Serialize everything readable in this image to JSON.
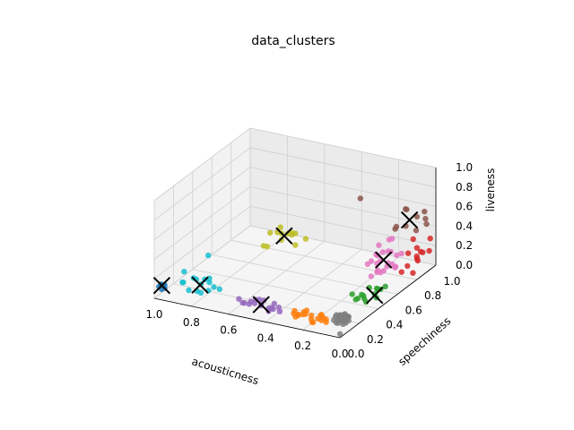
{
  "chart_data": {
    "type": "scatter",
    "subtype": "3d",
    "title": "data_clusters",
    "xlabel": "acousticness",
    "ylabel": "speechiness",
    "zlabel": "liveness",
    "xlim": [
      0,
      1
    ],
    "ylim": [
      0,
      1
    ],
    "zlim": [
      0,
      1
    ],
    "x_ticks": [
      "0.0",
      "0.2",
      "0.4",
      "0.6",
      "0.8",
      "1.0"
    ],
    "y_ticks": [
      "0.0",
      "0.2",
      "0.4",
      "0.6",
      "0.8",
      "1.0"
    ],
    "z_ticks": [
      "0.0",
      "0.2",
      "0.4",
      "0.6",
      "0.8",
      "1.0"
    ],
    "grid": true,
    "series": [
      {
        "color": "#1f77b4",
        "points": [
          [
            0.99,
            0.03,
            0.1
          ],
          [
            0.98,
            0.04,
            0.12
          ],
          [
            0.97,
            0.02,
            0.09
          ],
          [
            0.99,
            0.05,
            0.11
          ],
          [
            0.96,
            0.03,
            0.13
          ],
          [
            0.98,
            0.06,
            0.1
          ],
          [
            0.97,
            0.05,
            0.08
          ]
        ]
      },
      {
        "color": "#ff7f0e",
        "points": [
          [
            0.12,
            0.04,
            0.1
          ],
          [
            0.18,
            0.05,
            0.08
          ],
          [
            0.22,
            0.04,
            0.12
          ],
          [
            0.15,
            0.06,
            0.09
          ],
          [
            0.25,
            0.05,
            0.1
          ],
          [
            0.2,
            0.03,
            0.14
          ],
          [
            0.1,
            0.05,
            0.11
          ],
          [
            0.28,
            0.06,
            0.09
          ],
          [
            0.16,
            0.03,
            0.07
          ],
          [
            0.14,
            0.07,
            0.12
          ],
          [
            0.21,
            0.06,
            0.15
          ],
          [
            0.24,
            0.03,
            0.11
          ],
          [
            0.11,
            0.04,
            0.13
          ],
          [
            0.19,
            0.07,
            0.1
          ],
          [
            0.17,
            0.04,
            0.06
          ],
          [
            0.26,
            0.04,
            0.08
          ],
          [
            0.13,
            0.06,
            0.14
          ],
          [
            0.23,
            0.07,
            0.12
          ],
          [
            0.09,
            0.03,
            0.1
          ],
          [
            0.27,
            0.05,
            0.13
          ]
        ]
      },
      {
        "color": "#2ca02c",
        "points": [
          [
            0.05,
            0.35,
            0.12
          ],
          [
            0.08,
            0.4,
            0.1
          ],
          [
            0.03,
            0.45,
            0.15
          ],
          [
            0.1,
            0.38,
            0.08
          ],
          [
            0.06,
            0.5,
            0.11
          ],
          [
            0.02,
            0.42,
            0.09
          ],
          [
            0.12,
            0.36,
            0.13
          ],
          [
            0.04,
            0.55,
            0.1
          ],
          [
            0.07,
            0.3,
            0.14
          ],
          [
            0.09,
            0.48,
            0.12
          ],
          [
            0.01,
            0.38,
            0.16
          ],
          [
            0.11,
            0.44,
            0.07
          ],
          [
            0.03,
            0.33,
            0.11
          ],
          [
            0.05,
            0.52,
            0.09
          ]
        ]
      },
      {
        "color": "#d62728",
        "points": [
          [
            0.02,
            0.85,
            0.15
          ],
          [
            0.03,
            0.9,
            0.2
          ],
          [
            0.05,
            0.8,
            0.12
          ],
          [
            0.01,
            0.95,
            0.18
          ],
          [
            0.04,
            0.88,
            0.25
          ],
          [
            0.02,
            0.75,
            0.3
          ],
          [
            0.06,
            0.92,
            0.1
          ],
          [
            0.01,
            0.82,
            0.22
          ],
          [
            0.03,
            0.7,
            0.14
          ],
          [
            0.02,
            0.98,
            0.28
          ],
          [
            0.05,
            0.86,
            0.35
          ],
          [
            0.01,
            0.78,
            0.08
          ],
          [
            0.04,
            0.94,
            0.16
          ]
        ]
      },
      {
        "color": "#9467bd",
        "points": [
          [
            0.45,
            0.05,
            0.12
          ],
          [
            0.4,
            0.06,
            0.1
          ],
          [
            0.5,
            0.04,
            0.14
          ],
          [
            0.42,
            0.07,
            0.08
          ],
          [
            0.48,
            0.05,
            0.16
          ],
          [
            0.38,
            0.04,
            0.11
          ],
          [
            0.52,
            0.06,
            0.09
          ],
          [
            0.44,
            0.03,
            0.13
          ],
          [
            0.36,
            0.06,
            0.12
          ],
          [
            0.55,
            0.05,
            0.1
          ],
          [
            0.47,
            0.07,
            0.15
          ],
          [
            0.41,
            0.05,
            0.07
          ],
          [
            0.53,
            0.03,
            0.12
          ],
          [
            0.39,
            0.07,
            0.14
          ],
          [
            0.49,
            0.06,
            0.11
          ],
          [
            0.43,
            0.04,
            0.18
          ],
          [
            0.57,
            0.05,
            0.13
          ],
          [
            0.35,
            0.05,
            0.09
          ]
        ]
      },
      {
        "color": "#8c564b",
        "points": [
          [
            0.05,
            0.9,
            0.55
          ],
          [
            0.08,
            0.85,
            0.65
          ],
          [
            0.03,
            0.95,
            0.5
          ],
          [
            0.1,
            0.88,
            0.45
          ],
          [
            0.06,
            0.8,
            0.7
          ],
          [
            0.02,
            0.92,
            0.6
          ],
          [
            0.2,
            0.6,
            0.9
          ],
          [
            0.12,
            0.82,
            0.48
          ],
          [
            0.04,
            0.98,
            0.42
          ],
          [
            0.09,
            0.75,
            0.52
          ],
          [
            0.07,
            0.93,
            0.38
          ]
        ]
      },
      {
        "color": "#e377c2",
        "points": [
          [
            0.05,
            0.6,
            0.3
          ],
          [
            0.08,
            0.55,
            0.25
          ],
          [
            0.03,
            0.65,
            0.35
          ],
          [
            0.1,
            0.58,
            0.2
          ],
          [
            0.06,
            0.62,
            0.4
          ],
          [
            0.04,
            0.5,
            0.28
          ],
          [
            0.12,
            0.56,
            0.32
          ],
          [
            0.07,
            0.68,
            0.22
          ],
          [
            0.02,
            0.57,
            0.45
          ],
          [
            0.09,
            0.63,
            0.18
          ],
          [
            0.05,
            0.52,
            0.38
          ],
          [
            0.11,
            0.6,
            0.27
          ],
          [
            0.03,
            0.7,
            0.33
          ],
          [
            0.08,
            0.48,
            0.24
          ],
          [
            0.06,
            0.66,
            0.5
          ],
          [
            0.13,
            0.54,
            0.3
          ],
          [
            0.04,
            0.59,
            0.55
          ],
          [
            0.1,
            0.64,
            0.36
          ],
          [
            0.07,
            0.53,
            0.42
          ],
          [
            0.02,
            0.62,
            0.26
          ],
          [
            0.09,
            0.58,
            0.48
          ],
          [
            0.05,
            0.67,
            0.2
          ],
          [
            0.12,
            0.61,
            0.35
          ],
          [
            0.03,
            0.55,
            0.31
          ]
        ]
      },
      {
        "color": "#7f7f7f",
        "points": [
          [
            0.02,
            0.08,
            0.1
          ],
          [
            0.05,
            0.1,
            0.12
          ],
          [
            0.03,
            0.12,
            0.08
          ],
          [
            0.06,
            0.07,
            0.14
          ],
          [
            0.01,
            0.11,
            0.09
          ],
          [
            0.04,
            0.09,
            0.11
          ],
          [
            0.07,
            0.13,
            0.1
          ],
          [
            0.02,
            0.06,
            0.13
          ],
          [
            0.05,
            0.14,
            0.07
          ],
          [
            0.03,
            0.1,
            0.15
          ],
          [
            0.06,
            0.11,
            0.09
          ],
          [
            0.01,
            0.08,
            0.12
          ],
          [
            0.04,
            0.12,
            0.1
          ],
          [
            0.08,
            0.09,
            0.08
          ],
          [
            0.02,
            0.13,
            0.11
          ],
          [
            0.05,
            0.07,
            0.1
          ],
          [
            0.03,
            0.09,
            0.06
          ],
          [
            0.07,
            0.1,
            0.13
          ],
          [
            0.04,
            0.06,
            0.09
          ],
          [
            0.06,
            0.12,
            0.12
          ],
          [
            0.01,
            0.1,
            0.14
          ],
          [
            0.03,
            0.14,
            0.1
          ],
          [
            0.05,
            0.11,
            0.08
          ],
          [
            0.02,
            0.07,
            0.11
          ],
          [
            0.04,
            0.13,
            0.13
          ],
          [
            0.06,
            0.08,
            0.07
          ],
          [
            0.03,
            0.11,
            0.12
          ],
          [
            0.05,
            0.09,
            0.14
          ],
          [
            0.02,
            0.1,
            0.07
          ],
          [
            0.04,
            0.08,
            0.12
          ],
          [
            0.01,
            0.02,
            0.02
          ]
        ]
      },
      {
        "color": "#bcbd22",
        "points": [
          [
            0.6,
            0.55,
            0.35
          ],
          [
            0.55,
            0.6,
            0.4
          ],
          [
            0.65,
            0.5,
            0.3
          ],
          [
            0.58,
            0.62,
            0.38
          ],
          [
            0.62,
            0.58,
            0.45
          ],
          [
            0.52,
            0.65,
            0.32
          ],
          [
            0.68,
            0.52,
            0.28
          ],
          [
            0.57,
            0.56,
            0.42
          ],
          [
            0.63,
            0.61,
            0.36
          ],
          [
            0.54,
            0.58,
            0.3
          ],
          [
            0.66,
            0.55,
            0.4
          ],
          [
            0.59,
            0.64,
            0.34
          ],
          [
            0.61,
            0.53,
            0.44
          ]
        ]
      },
      {
        "color": "#17becf",
        "points": [
          [
            0.8,
            0.1,
            0.15
          ],
          [
            0.75,
            0.08,
            0.12
          ],
          [
            0.85,
            0.12,
            0.18
          ],
          [
            0.78,
            0.06,
            0.1
          ],
          [
            0.82,
            0.09,
            0.2
          ],
          [
            0.7,
            0.1,
            0.14
          ],
          [
            0.88,
            0.07,
            0.16
          ],
          [
            0.76,
            0.11,
            0.22
          ],
          [
            0.84,
            0.05,
            0.11
          ],
          [
            0.72,
            0.08,
            0.17
          ],
          [
            0.9,
            0.1,
            0.13
          ],
          [
            0.79,
            0.12,
            0.19
          ],
          [
            0.86,
            0.04,
            0.3
          ],
          [
            0.74,
            0.06,
            0.5
          ],
          [
            0.81,
            0.08,
            0.09
          ],
          [
            0.77,
            0.13,
            0.16
          ]
        ]
      }
    ],
    "centroids": [
      [
        0.98,
        0.04,
        0.11
      ],
      [
        0.8,
        0.09,
        0.15
      ],
      [
        0.45,
        0.05,
        0.12
      ],
      [
        0.6,
        0.58,
        0.37
      ],
      [
        0.07,
        0.59,
        0.33
      ],
      [
        0.03,
        0.42,
        0.11
      ],
      [
        0.08,
        0.88,
        0.52
      ]
    ],
    "centroid_marker": "x",
    "centroid_color": "#000000"
  }
}
